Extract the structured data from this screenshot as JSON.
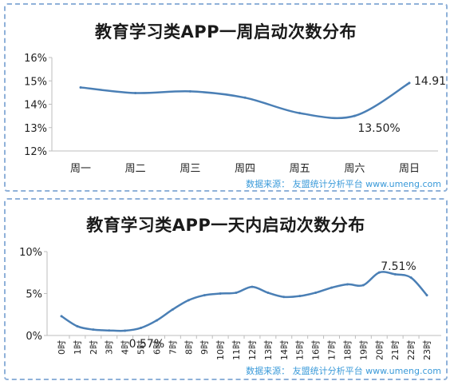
{
  "chart_data": [
    {
      "type": "line",
      "title": "教育学习类APP一周启动次数分布",
      "categories": [
        "周一",
        "周二",
        "周三",
        "周四",
        "周五",
        "周六",
        "周日"
      ],
      "values": [
        14.72,
        14.48,
        14.55,
        14.28,
        13.62,
        13.5,
        14.91
      ],
      "y_ticks": [
        "12%",
        "13%",
        "14%",
        "15%",
        "16%"
      ],
      "ylim": [
        12,
        16
      ],
      "grid": false,
      "annotations": [
        "13.50%",
        "14.91%"
      ],
      "color": "#4a7fb5",
      "source": "数据来源： 友盟统计分析平台 www.umeng.com"
    },
    {
      "type": "line",
      "title": "教育学习类APP一天内启动次数分布",
      "categories": [
        "0时",
        "1时",
        "2时",
        "3时",
        "4时",
        "5时",
        "6时",
        "7时",
        "8时",
        "9时",
        "10时",
        "11时",
        "12时",
        "13时",
        "14时",
        "15时",
        "16时",
        "17时",
        "18时",
        "19时",
        "20时",
        "21时",
        "22时",
        "23时"
      ],
      "values": [
        2.3,
        1.1,
        0.7,
        0.6,
        0.57,
        0.9,
        1.8,
        3.1,
        4.2,
        4.8,
        5.0,
        5.1,
        5.8,
        5.1,
        4.6,
        4.7,
        5.1,
        5.7,
        6.1,
        6.0,
        7.51,
        7.3,
        6.9,
        4.8
      ],
      "y_ticks": [
        "0%",
        "5%",
        "10%"
      ],
      "ylim": [
        0,
        10
      ],
      "grid": false,
      "annotations": [
        "0.57%",
        "7.51%"
      ],
      "color": "#4a7fb5",
      "source": "数据来源： 友盟统计分析平台 www.umeng.com"
    }
  ]
}
